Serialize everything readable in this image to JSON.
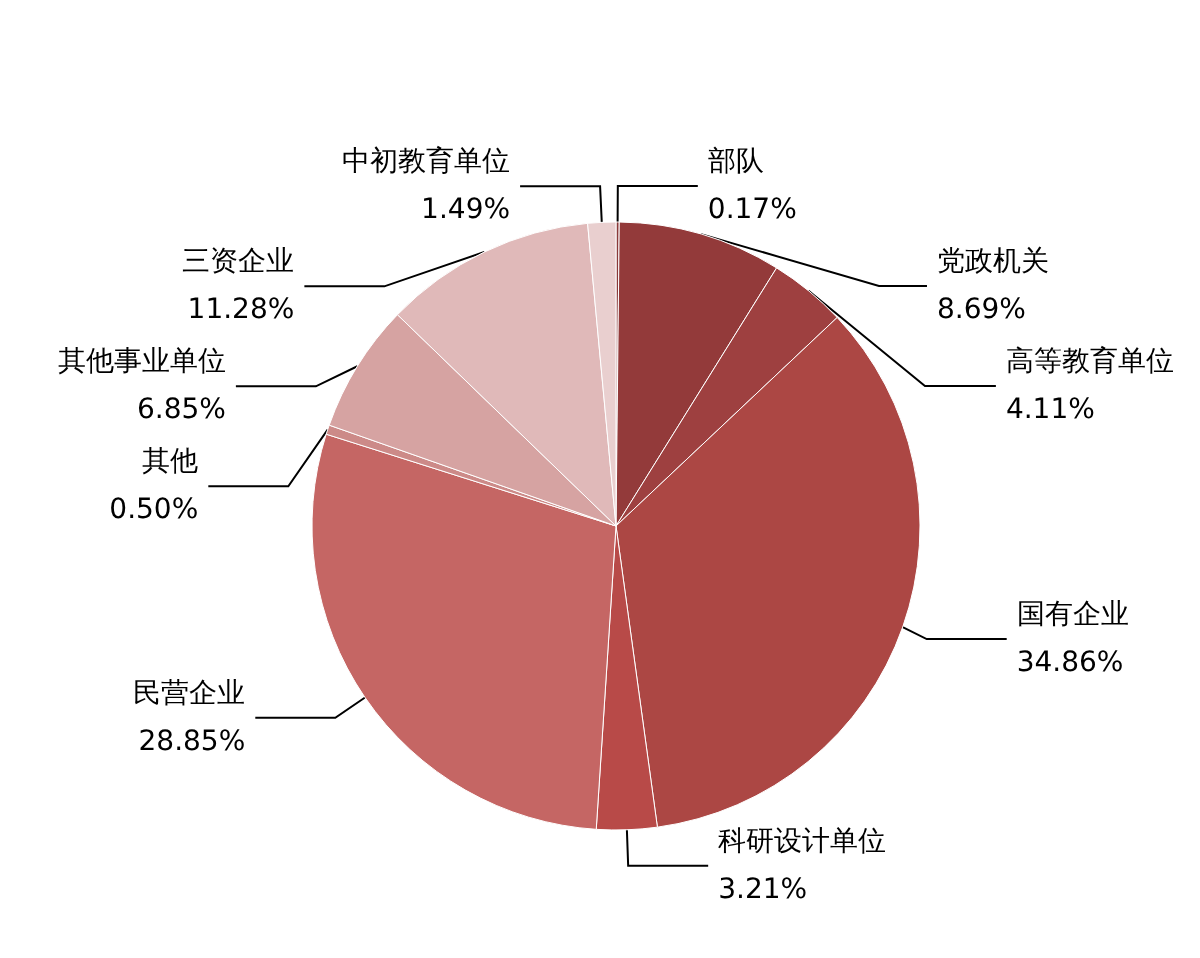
{
  "chart_data": {
    "type": "pie",
    "categories": [
      "部队",
      "党政机关",
      "高等教育单位",
      "国有企业",
      "科研设计单位",
      "民营企业",
      "其他",
      "其他事业单位",
      "三资企业",
      "中初教育单位"
    ],
    "values": [
      0.17,
      8.69,
      4.11,
      34.86,
      3.21,
      28.85,
      0.5,
      6.85,
      11.28,
      1.49
    ],
    "colors": [
      "#8a3838",
      "#933a3a",
      "#9e4040",
      "#ac4744",
      "#b84a48",
      "#c56664",
      "#cc8a88",
      "#d6a3a2",
      "#e0b9b9",
      "#e9cfcf"
    ],
    "value_labels": [
      "0.17%",
      "8.69%",
      "4.11%",
      "34.86%",
      "3.21%",
      "28.85%",
      "0.50%",
      "6.85%",
      "11.28%",
      "1.49%"
    ],
    "legend": false
  }
}
